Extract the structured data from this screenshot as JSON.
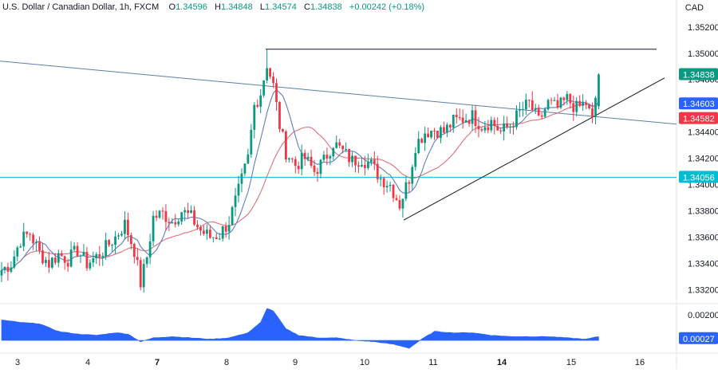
{
  "header": {
    "symbol": "U.S. Dollar / Canadian Dollar, 1h, FXCM",
    "open_label": "O",
    "open": "1.34596",
    "high_label": "H",
    "high": "1.34848",
    "low_label": "L",
    "low": "1.34574",
    "close_label": "C",
    "close": "1.34838",
    "change": "+0.00242 (+0.18%)"
  },
  "currency": "CAD",
  "colors": {
    "up": "#089981",
    "down": "#f23645",
    "blue_line": "#2962ff",
    "red_ma": "#e0707a",
    "blue_ma": "#5b7fc7",
    "cyan_line": "#00bcd4",
    "trend_line": "#131722",
    "histogram": "#2962ff"
  },
  "chart_data": {
    "type": "candlestick",
    "price_axis": {
      "ticks": [
        "1.35200",
        "1.35000",
        "1.34800",
        "1.34600",
        "1.34400",
        "1.34200",
        "1.34000",
        "1.33800",
        "1.33600",
        "1.33400",
        "1.33200"
      ],
      "ylim": [
        1.331,
        1.3532
      ]
    },
    "time_axis": {
      "labels": [
        "3",
        "4",
        "7",
        "8",
        "9",
        "10",
        "11",
        "14",
        "15",
        "16"
      ],
      "bold": [
        "7",
        "14"
      ]
    },
    "price_tags": [
      {
        "value": "1.34838",
        "kind": "last"
      },
      {
        "value": "1.34603",
        "kind": "blue"
      },
      {
        "value": "1.34582",
        "kind": "red"
      },
      {
        "value": "1.34056",
        "kind": "cyan"
      }
    ],
    "levels": {
      "horizontal_resistance": 1.3503,
      "horizontal_support": 1.34056,
      "descending_trendline": [
        1.3494,
        1.3446
      ],
      "ascending_trendline": [
        1.3373,
        1.3463
      ]
    },
    "path_anchors": [
      [
        0,
        1.3335
      ],
      [
        3,
        1.334
      ],
      [
        6,
        1.3358
      ],
      [
        9,
        1.3363
      ],
      [
        12,
        1.3348
      ],
      [
        15,
        1.334
      ],
      [
        18,
        1.3347
      ],
      [
        21,
        1.3343
      ],
      [
        24,
        1.335
      ],
      [
        27,
        1.334
      ],
      [
        30,
        1.3345
      ],
      [
        33,
        1.3352
      ],
      [
        36,
        1.336
      ],
      [
        39,
        1.337
      ],
      [
        42,
        1.335
      ],
      [
        44,
        1.3325
      ],
      [
        46,
        1.3345
      ],
      [
        48,
        1.3375
      ],
      [
        51,
        1.3378
      ],
      [
        54,
        1.3372
      ],
      [
        57,
        1.338
      ],
      [
        60,
        1.3375
      ],
      [
        63,
        1.3365
      ],
      [
        66,
        1.336
      ],
      [
        69,
        1.3362
      ],
      [
        72,
        1.3372
      ],
      [
        75,
        1.3395
      ],
      [
        78,
        1.342
      ],
      [
        80,
        1.346
      ],
      [
        82,
        1.347
      ],
      [
        84,
        1.3492
      ],
      [
        86,
        1.3475
      ],
      [
        88,
        1.3445
      ],
      [
        90,
        1.3425
      ],
      [
        93,
        1.3415
      ],
      [
        96,
        1.342
      ],
      [
        99,
        1.341
      ],
      [
        102,
        1.3418
      ],
      [
        105,
        1.3432
      ],
      [
        108,
        1.3425
      ],
      [
        111,
        1.3418
      ],
      [
        114,
        1.342
      ],
      [
        117,
        1.3415
      ],
      [
        120,
        1.3405
      ],
      [
        123,
        1.34
      ],
      [
        126,
        1.3385
      ],
      [
        129,
        1.3405
      ],
      [
        131,
        1.343
      ],
      [
        134,
        1.344
      ],
      [
        137,
        1.3442
      ],
      [
        140,
        1.344
      ],
      [
        143,
        1.3448
      ],
      [
        146,
        1.345
      ],
      [
        149,
        1.3452
      ],
      [
        152,
        1.3445
      ],
      [
        155,
        1.3448
      ],
      [
        158,
        1.344
      ],
      [
        161,
        1.3445
      ],
      [
        164,
        1.3455
      ],
      [
        167,
        1.3462
      ],
      [
        170,
        1.3448
      ],
      [
        173,
        1.3462
      ],
      [
        176,
        1.3458
      ],
      [
        179,
        1.3465
      ],
      [
        182,
        1.3458
      ],
      [
        185,
        1.3462
      ],
      [
        187,
        1.3448
      ],
      [
        189,
        1.3484
      ]
    ],
    "oscillator": {
      "ticks": [
        "0.00200",
        "0.00000"
      ],
      "current": "0.00027",
      "ylim": [
        -0.0008,
        0.0028
      ],
      "anchors": [
        [
          0,
          0.0016
        ],
        [
          6,
          0.0014
        ],
        [
          12,
          0.0013
        ],
        [
          18,
          0.0007
        ],
        [
          24,
          0.0005
        ],
        [
          30,
          0.0004
        ],
        [
          36,
          0.0006
        ],
        [
          40,
          0.0005
        ],
        [
          44,
          -0.0001
        ],
        [
          48,
          0.0002
        ],
        [
          54,
          0.0003
        ],
        [
          60,
          0.0002
        ],
        [
          66,
          0.0001
        ],
        [
          72,
          0.0002
        ],
        [
          78,
          0.0006
        ],
        [
          82,
          0.0014
        ],
        [
          84,
          0.0025
        ],
        [
          86,
          0.0023
        ],
        [
          90,
          0.0009
        ],
        [
          94,
          0.0004
        ],
        [
          100,
          0.0002
        ],
        [
          106,
          0.0002
        ],
        [
          112,
          0.0
        ],
        [
          118,
          -0.0001
        ],
        [
          124,
          -0.0003
        ],
        [
          129,
          -0.0006
        ],
        [
          133,
          0.0001
        ],
        [
          137,
          0.0007
        ],
        [
          143,
          0.0006
        ],
        [
          149,
          0.0006
        ],
        [
          155,
          0.0004
        ],
        [
          161,
          0.0003
        ],
        [
          167,
          0.0003
        ],
        [
          173,
          0.0003
        ],
        [
          179,
          0.0002
        ],
        [
          185,
          0.0001
        ],
        [
          189,
          0.0003
        ]
      ]
    }
  }
}
